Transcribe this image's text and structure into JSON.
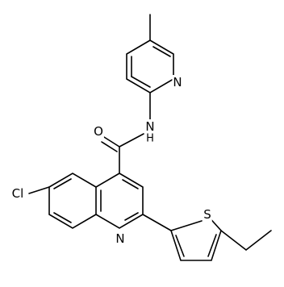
{
  "atom_labels": {
    "chlorine": "Cl",
    "carbonyl_oxygen": "O",
    "amide_nitrogen": "N",
    "amide_hydrogen": "H",
    "pyridine_nitrogen": "N",
    "quinoline_nitrogen": "N",
    "thiophene_sulfur": "S"
  }
}
